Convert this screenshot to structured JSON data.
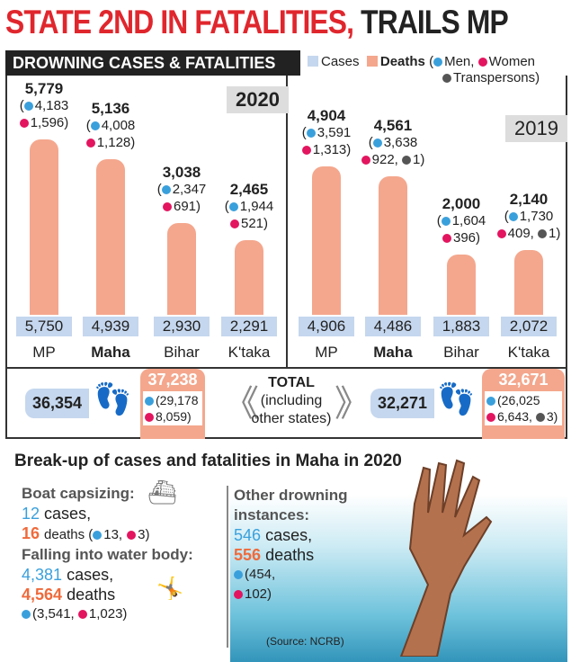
{
  "headline": {
    "part1": "STATE 2ND IN FATALITIES,",
    "part2": "TRAILS MP"
  },
  "subheader": "DROWNING CASES & FATALITIES",
  "legend": {
    "cases": "Cases",
    "deaths": "Deaths",
    "men": "Men,",
    "women": "Women",
    "trans": "Transpersons)",
    "open": "("
  },
  "colors": {
    "cases": "#c5d7ee",
    "deaths": "#f4a78d",
    "men": "#3aa0dc",
    "women": "#e3155f",
    "trans": "#555555",
    "title": "#e0262d"
  },
  "chart_data": [
    {
      "type": "bar",
      "title": "2020",
      "categories": [
        "MP",
        "Maha",
        "Bihar",
        "K'taka"
      ],
      "series": [
        {
          "name": "Cases",
          "values": [
            5750,
            4939,
            2930,
            2291
          ],
          "labels": [
            "5,750",
            "4,939",
            "2,930",
            "2,291"
          ]
        },
        {
          "name": "Deaths",
          "values": [
            5779,
            5136,
            3038,
            2465
          ],
          "labels": [
            "5,779",
            "5,136",
            "3,038",
            "2,465"
          ]
        }
      ],
      "breakdown": [
        [
          "(",
          "4,183",
          "1,596)"
        ],
        [
          "(",
          "4,008",
          "1,128)"
        ],
        [
          "(",
          "2,347",
          "691)"
        ],
        [
          "(",
          "1,944",
          "521)"
        ]
      ]
    },
    {
      "type": "bar",
      "title": "2019",
      "categories": [
        "MP",
        "Maha",
        "Bihar",
        "K'taka"
      ],
      "series": [
        {
          "name": "Cases",
          "values": [
            4906,
            4486,
            1883,
            2072
          ],
          "labels": [
            "4,906",
            "4,486",
            "1,883",
            "2,072"
          ]
        },
        {
          "name": "Deaths",
          "values": [
            4904,
            4561,
            2000,
            2140
          ],
          "labels": [
            "4,904",
            "4,561",
            "2,000",
            "2,140"
          ]
        }
      ],
      "breakdown": [
        [
          "(",
          "3,591",
          "1,313)"
        ],
        [
          "(",
          "3,638",
          "922,",
          "1)"
        ],
        [
          "(",
          "1,604",
          "396)"
        ],
        [
          "(",
          "1,730",
          "409,",
          "1)"
        ]
      ]
    }
  ],
  "totals": {
    "label": "TOTAL",
    "sub1": "(including",
    "sub2": "other states)",
    "y2020": {
      "cases": "36,354",
      "deaths": "37,238",
      "men": "(29,178",
      "women": "8,059)"
    },
    "y2019": {
      "cases": "32,271",
      "deaths": "32,671",
      "men": "(26,025",
      "women": "6,643,",
      "trans": "3)"
    }
  },
  "breakup": {
    "title": "Break-up of cases and fatalities in Maha in 2020",
    "boat": {
      "head": "Boat capsizing:",
      "cases": "12",
      "cases_word": "cases,",
      "deaths": "16",
      "deaths_word": "deaths (",
      "men": "13,",
      "women": "3)"
    },
    "falling": {
      "head": "Falling into water body:",
      "cases": "4,381",
      "cases_word": "cases,",
      "deaths": "4,564",
      "deaths_word": "deaths",
      "men": "(3,541,",
      "women": "1,023)"
    },
    "other": {
      "head1": "Other drowning",
      "head2": "instances:",
      "cases": "546",
      "cases_word": "cases,",
      "deaths": "556",
      "deaths_word": "deaths",
      "men": "(454,",
      "women": "102)"
    },
    "source": "(Source: NCRB)"
  }
}
